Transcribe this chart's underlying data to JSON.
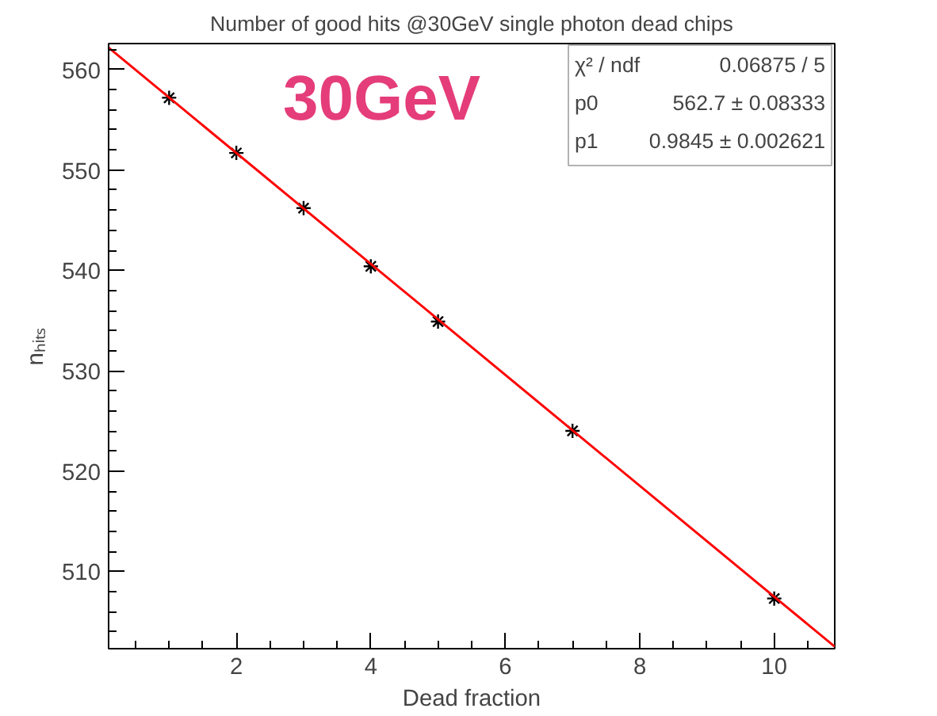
{
  "chart_data": {
    "type": "scatter",
    "title": "Number of good hits @30GeV single photon dead chips",
    "xlabel": "Dead fraction",
    "ylabel": "nₕᵢₜₛ",
    "x": [
      1,
      2,
      3,
      4,
      5,
      7,
      10
    ],
    "series": [
      {
        "color": "#000000",
        "values": [
          557.2,
          551.7,
          546.2,
          540.4,
          534.9,
          524.0,
          507.3
        ],
        "marker": "cross"
      },
      {
        "type": "line",
        "color": "#ff0000",
        "x": [
          0.1,
          10.9
        ],
        "values": [
          562.2,
          502.5
        ],
        "marker": "none"
      }
    ],
    "xlim": [
      0.1,
      10.9
    ],
    "ylim": [
      502.3,
      562.6
    ],
    "xticks": [
      2,
      4,
      6,
      8,
      10
    ],
    "yticks": [
      510,
      520,
      530,
      540,
      550,
      560
    ],
    "grid": false,
    "annotations": [
      "30GeV",
      "χ² / ndf",
      "0.06875 / 5",
      "p0",
      "562.7 ± 0.08333",
      "p1",
      "0.9845 ± 0.002621"
    ]
  }
}
